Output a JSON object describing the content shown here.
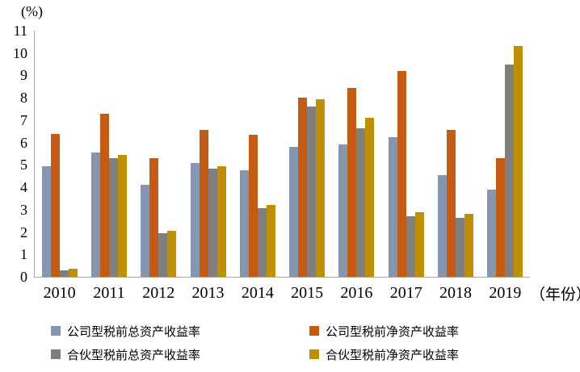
{
  "chart_data": {
    "type": "bar",
    "title": "",
    "y_unit_label": "(%)",
    "x_unit_label": "（年份）",
    "categories": [
      "2010",
      "2011",
      "2012",
      "2013",
      "2014",
      "2015",
      "2016",
      "2017",
      "2018",
      "2019"
    ],
    "series": [
      {
        "name": "公司型税前总资产收益率",
        "color": "#8496B0",
        "values": [
          4.95,
          5.55,
          4.1,
          5.1,
          4.75,
          5.8,
          5.9,
          6.25,
          4.55,
          3.9
        ]
      },
      {
        "name": "公司型税前净资产收益率",
        "color": "#C55A11",
        "values": [
          6.4,
          7.3,
          5.3,
          6.55,
          6.35,
          8.0,
          8.45,
          9.2,
          6.55,
          5.3
        ]
      },
      {
        "name": "合伙型税前总资产收益率",
        "color": "#7F7F7F",
        "values": [
          0.3,
          5.3,
          1.95,
          4.85,
          3.05,
          7.6,
          6.65,
          2.7,
          2.65,
          9.5
        ]
      },
      {
        "name": "合伙型税前净资产收益率",
        "color": "#BF8F00",
        "values": [
          0.35,
          5.45,
          2.05,
          4.95,
          3.2,
          7.95,
          7.1,
          2.9,
          2.8,
          10.3
        ]
      }
    ],
    "ylim": [
      0,
      11
    ],
    "yticks": [
      0,
      1,
      2,
      3,
      4,
      5,
      6,
      7,
      8,
      9,
      10,
      11
    ],
    "grid": false,
    "legend_position": "bottom",
    "axis_color": "#a6a6a6"
  }
}
